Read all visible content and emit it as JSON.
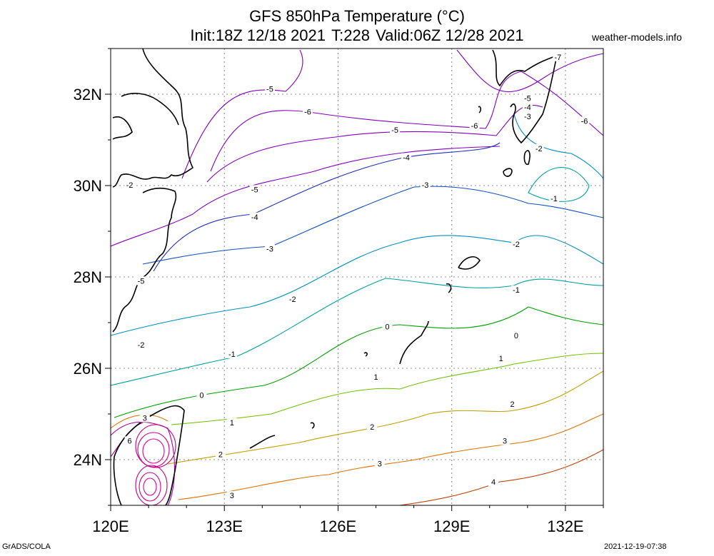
{
  "title": {
    "line1": "GFS 850hPa Temperature (°C)",
    "init": "Init:18Z 12/18 2021",
    "step": "T:228",
    "valid": "Valid:06Z 12/28 2021"
  },
  "credit": "weather-models.info",
  "footer": {
    "left": "GrADS/COLA",
    "right": "2021-12-19-07:38"
  },
  "map": {
    "lon_range": [
      120,
      133
    ],
    "lat_range": [
      23,
      33
    ],
    "grid": true,
    "lon_ticks": [
      "120E",
      "123E",
      "126E",
      "129E",
      "132E"
    ],
    "lat_ticks": [
      "32N",
      "30N",
      "28N",
      "26N",
      "24N"
    ],
    "contour_labels": [
      {
        "text": "-7",
        "lon": 131.8,
        "lat": 32.8,
        "color": "#8000c0"
      },
      {
        "text": "-5",
        "lon": 124.2,
        "lat": 32.1,
        "color": "#8000c0"
      },
      {
        "text": "-6",
        "lon": 125.2,
        "lat": 31.6,
        "color": "#8000c0"
      },
      {
        "text": "-5",
        "lon": 127.5,
        "lat": 31.2,
        "color": "#8000c0"
      },
      {
        "text": "-6",
        "lon": 129.6,
        "lat": 31.3,
        "color": "#8000c0"
      },
      {
        "text": "-5",
        "lon": 131.0,
        "lat": 31.9,
        "color": "#8000c0"
      },
      {
        "text": "-4",
        "lon": 131.0,
        "lat": 31.7,
        "color": "#3030c0"
      },
      {
        "text": "-3",
        "lon": 131.0,
        "lat": 31.5,
        "color": "#1050c0"
      },
      {
        "text": "-6",
        "lon": 132.5,
        "lat": 31.4,
        "color": "#8000c0"
      },
      {
        "text": "-2",
        "lon": 131.3,
        "lat": 30.8,
        "color": "#0090c0"
      },
      {
        "text": "-4",
        "lon": 127.8,
        "lat": 30.6,
        "color": "#3030c0"
      },
      {
        "text": "-3",
        "lon": 128.3,
        "lat": 30.0,
        "color": "#1050c0"
      },
      {
        "text": "-5",
        "lon": 123.8,
        "lat": 29.9,
        "color": "#8000c0"
      },
      {
        "text": "-1",
        "lon": 131.7,
        "lat": 29.7,
        "color": "#00a0a0"
      },
      {
        "text": "-2",
        "lon": 120.5,
        "lat": 30.0,
        "color": "#0090c0"
      },
      {
        "text": "-4",
        "lon": 123.8,
        "lat": 29.3,
        "color": "#3030c0"
      },
      {
        "text": "-3",
        "lon": 124.2,
        "lat": 28.6,
        "color": "#1050c0"
      },
      {
        "text": "-2",
        "lon": 130.7,
        "lat": 28.7,
        "color": "#0090c0"
      },
      {
        "text": "-5",
        "lon": 120.8,
        "lat": 27.9,
        "color": "#8000c0"
      },
      {
        "text": "-1",
        "lon": 130.7,
        "lat": 27.7,
        "color": "#00a0a0"
      },
      {
        "text": "-2",
        "lon": 124.8,
        "lat": 27.5,
        "color": "#0090c0"
      },
      {
        "text": "0",
        "lon": 127.3,
        "lat": 26.9,
        "color": "#00a000"
      },
      {
        "text": "0",
        "lon": 130.7,
        "lat": 26.7,
        "color": "#00a000"
      },
      {
        "text": "-2",
        "lon": 120.8,
        "lat": 26.5,
        "color": "#0090c0"
      },
      {
        "text": "-1",
        "lon": 123.2,
        "lat": 26.3,
        "color": "#00a0a0"
      },
      {
        "text": "1",
        "lon": 130.3,
        "lat": 26.2,
        "color": "#70c000"
      },
      {
        "text": "1",
        "lon": 127.0,
        "lat": 25.8,
        "color": "#70c000"
      },
      {
        "text": "0",
        "lon": 122.4,
        "lat": 25.4,
        "color": "#00a000"
      },
      {
        "text": "2",
        "lon": 130.6,
        "lat": 25.2,
        "color": "#c0a000"
      },
      {
        "text": "3",
        "lon": 120.9,
        "lat": 24.9,
        "color": "#e07000"
      },
      {
        "text": "1",
        "lon": 123.2,
        "lat": 24.8,
        "color": "#70c000"
      },
      {
        "text": "2",
        "lon": 126.9,
        "lat": 24.7,
        "color": "#c0a000"
      },
      {
        "text": "6",
        "lon": 120.5,
        "lat": 24.4,
        "color": "#c0007f"
      },
      {
        "text": "3",
        "lon": 130.4,
        "lat": 24.4,
        "color": "#e07000"
      },
      {
        "text": "2",
        "lon": 122.9,
        "lat": 24.1,
        "color": "#c0a000"
      },
      {
        "text": "3",
        "lon": 127.1,
        "lat": 23.9,
        "color": "#e07000"
      },
      {
        "text": "4",
        "lon": 130.1,
        "lat": 23.5,
        "color": "#c04000"
      },
      {
        "text": "3",
        "lon": 123.2,
        "lat": 23.2,
        "color": "#e07000"
      }
    ]
  }
}
